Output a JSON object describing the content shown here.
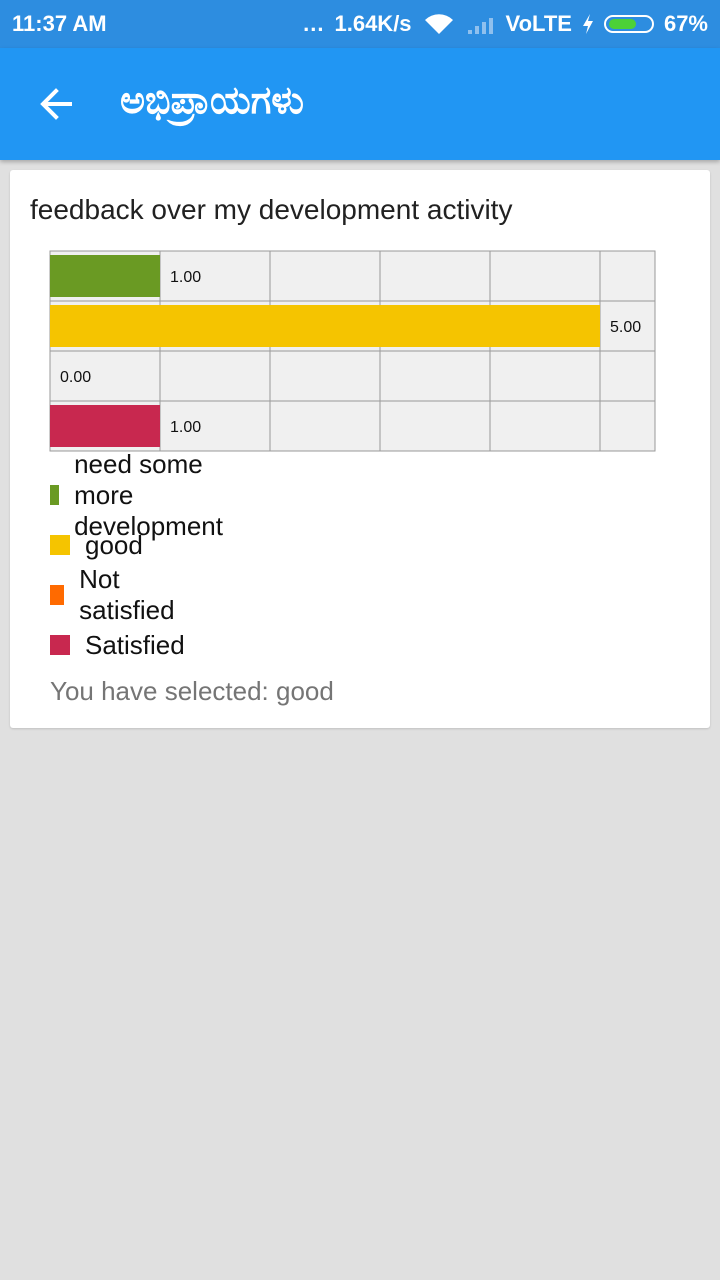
{
  "status_bar": {
    "time": "11:37 AM",
    "dots": "...",
    "speed": "1.64K/s",
    "network": "VoLTE",
    "battery": "67%",
    "battery_level": 0.67
  },
  "app_bar": {
    "title": "ಅಭಿಪ್ರಾಯಗಳು"
  },
  "card": {
    "title": "feedback over my development activity",
    "selected_text": "You have selected: good"
  },
  "chart_data": {
    "type": "bar",
    "orientation": "horizontal",
    "categories": [
      "need some more development",
      "good",
      "Not satisfied",
      "Satisfied"
    ],
    "values": [
      1.0,
      5.0,
      0.0,
      1.0
    ],
    "value_labels": [
      "1.00",
      "5.00",
      "0.00",
      "1.00"
    ],
    "colors": [
      "#6a9a23",
      "#f5c400",
      "#ff6a00",
      "#c8284f"
    ],
    "xlim": [
      0,
      5.5
    ],
    "grid": true,
    "legend": "bottom"
  },
  "colors": {
    "status_bar": "#2d8de0",
    "app_bar": "#2196f3",
    "background": "#e0e0e0",
    "plot_bg": "#f0f0f0",
    "grid": "#999999"
  }
}
